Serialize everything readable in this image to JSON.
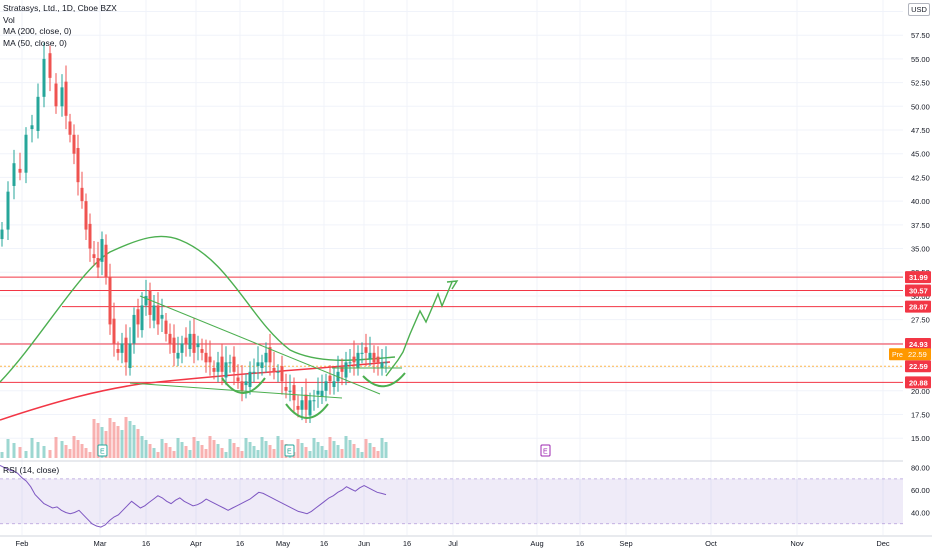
{
  "chart_data": {
    "type": "candlestick",
    "legend": {
      "symbol_line": "Stratasys, Ltd., 1D, Cboe BZX",
      "vol": "Vol",
      "ma200": "MA (200, close, 0)",
      "ma50": "MA (50, close, 0)"
    },
    "currency": "USD",
    "price_axis_ticks": [
      "60.00",
      "57.50",
      "55.00",
      "52.50",
      "50.00",
      "47.50",
      "45.00",
      "42.50",
      "40.00",
      "37.50",
      "35.00",
      "32.50",
      "30.00",
      "27.50",
      "25.00",
      "22.50",
      "20.00",
      "17.50",
      "15.00"
    ],
    "price_range": [
      12.7,
      61.0
    ],
    "time_axis_ticks": [
      "Feb",
      "Mar",
      "16",
      "Apr",
      "16",
      "May",
      "16",
      "Jun",
      "16",
      "Jul",
      "Aug",
      "16",
      "Sep",
      "Oct",
      "Nov",
      "Dec"
    ],
    "price_levels": [
      {
        "label": "31.99",
        "value": 31.99,
        "color": "#f23645"
      },
      {
        "label": "30.57",
        "value": 30.57,
        "color": "#f23645"
      },
      {
        "label": "28.87",
        "value": 28.87,
        "color": "#f23645"
      },
      {
        "label": "24.93",
        "value": 24.93,
        "color": "#f23645"
      },
      {
        "label": "20.88",
        "value": 20.88,
        "color": "#f23645"
      }
    ],
    "current_price": {
      "label": "22.59",
      "value": 22.59,
      "color": "#f23645"
    },
    "premarket": {
      "tag": "Pre",
      "label": "22.59",
      "color": "#ff9800"
    },
    "earnings_marker": "E",
    "rsi": {
      "label": "RSI (14, close)",
      "axis_ticks": [
        "80.00",
        "60.00",
        "40.00"
      ],
      "range": [
        20,
        85
      ],
      "band": [
        30,
        70
      ],
      "values": [
        82,
        80,
        78,
        77,
        75,
        71,
        68,
        63,
        56,
        52,
        48,
        46,
        44,
        45,
        42,
        40,
        39,
        40,
        42,
        38,
        34,
        30,
        28,
        27,
        29,
        33,
        36,
        38,
        42,
        46,
        50,
        47,
        44,
        46,
        49,
        52,
        55,
        53,
        50,
        48,
        51,
        53,
        50,
        48,
        46,
        47,
        49,
        52,
        50,
        48,
        46,
        44,
        42,
        44,
        46,
        48,
        50,
        52,
        55,
        58,
        57,
        55,
        53,
        51,
        49,
        47,
        45,
        43,
        41,
        40,
        39,
        41,
        44,
        47,
        50,
        53,
        55,
        58,
        60,
        63,
        61,
        59,
        62,
        64,
        62,
        60,
        58,
        57,
        56
      ]
    },
    "colors": {
      "up": "#26a69a",
      "down": "#ef5350",
      "ma200": "#f23645",
      "ma50": "#4caf50",
      "rsi": "#7e57c2",
      "forecast": "#4caf50"
    }
  }
}
